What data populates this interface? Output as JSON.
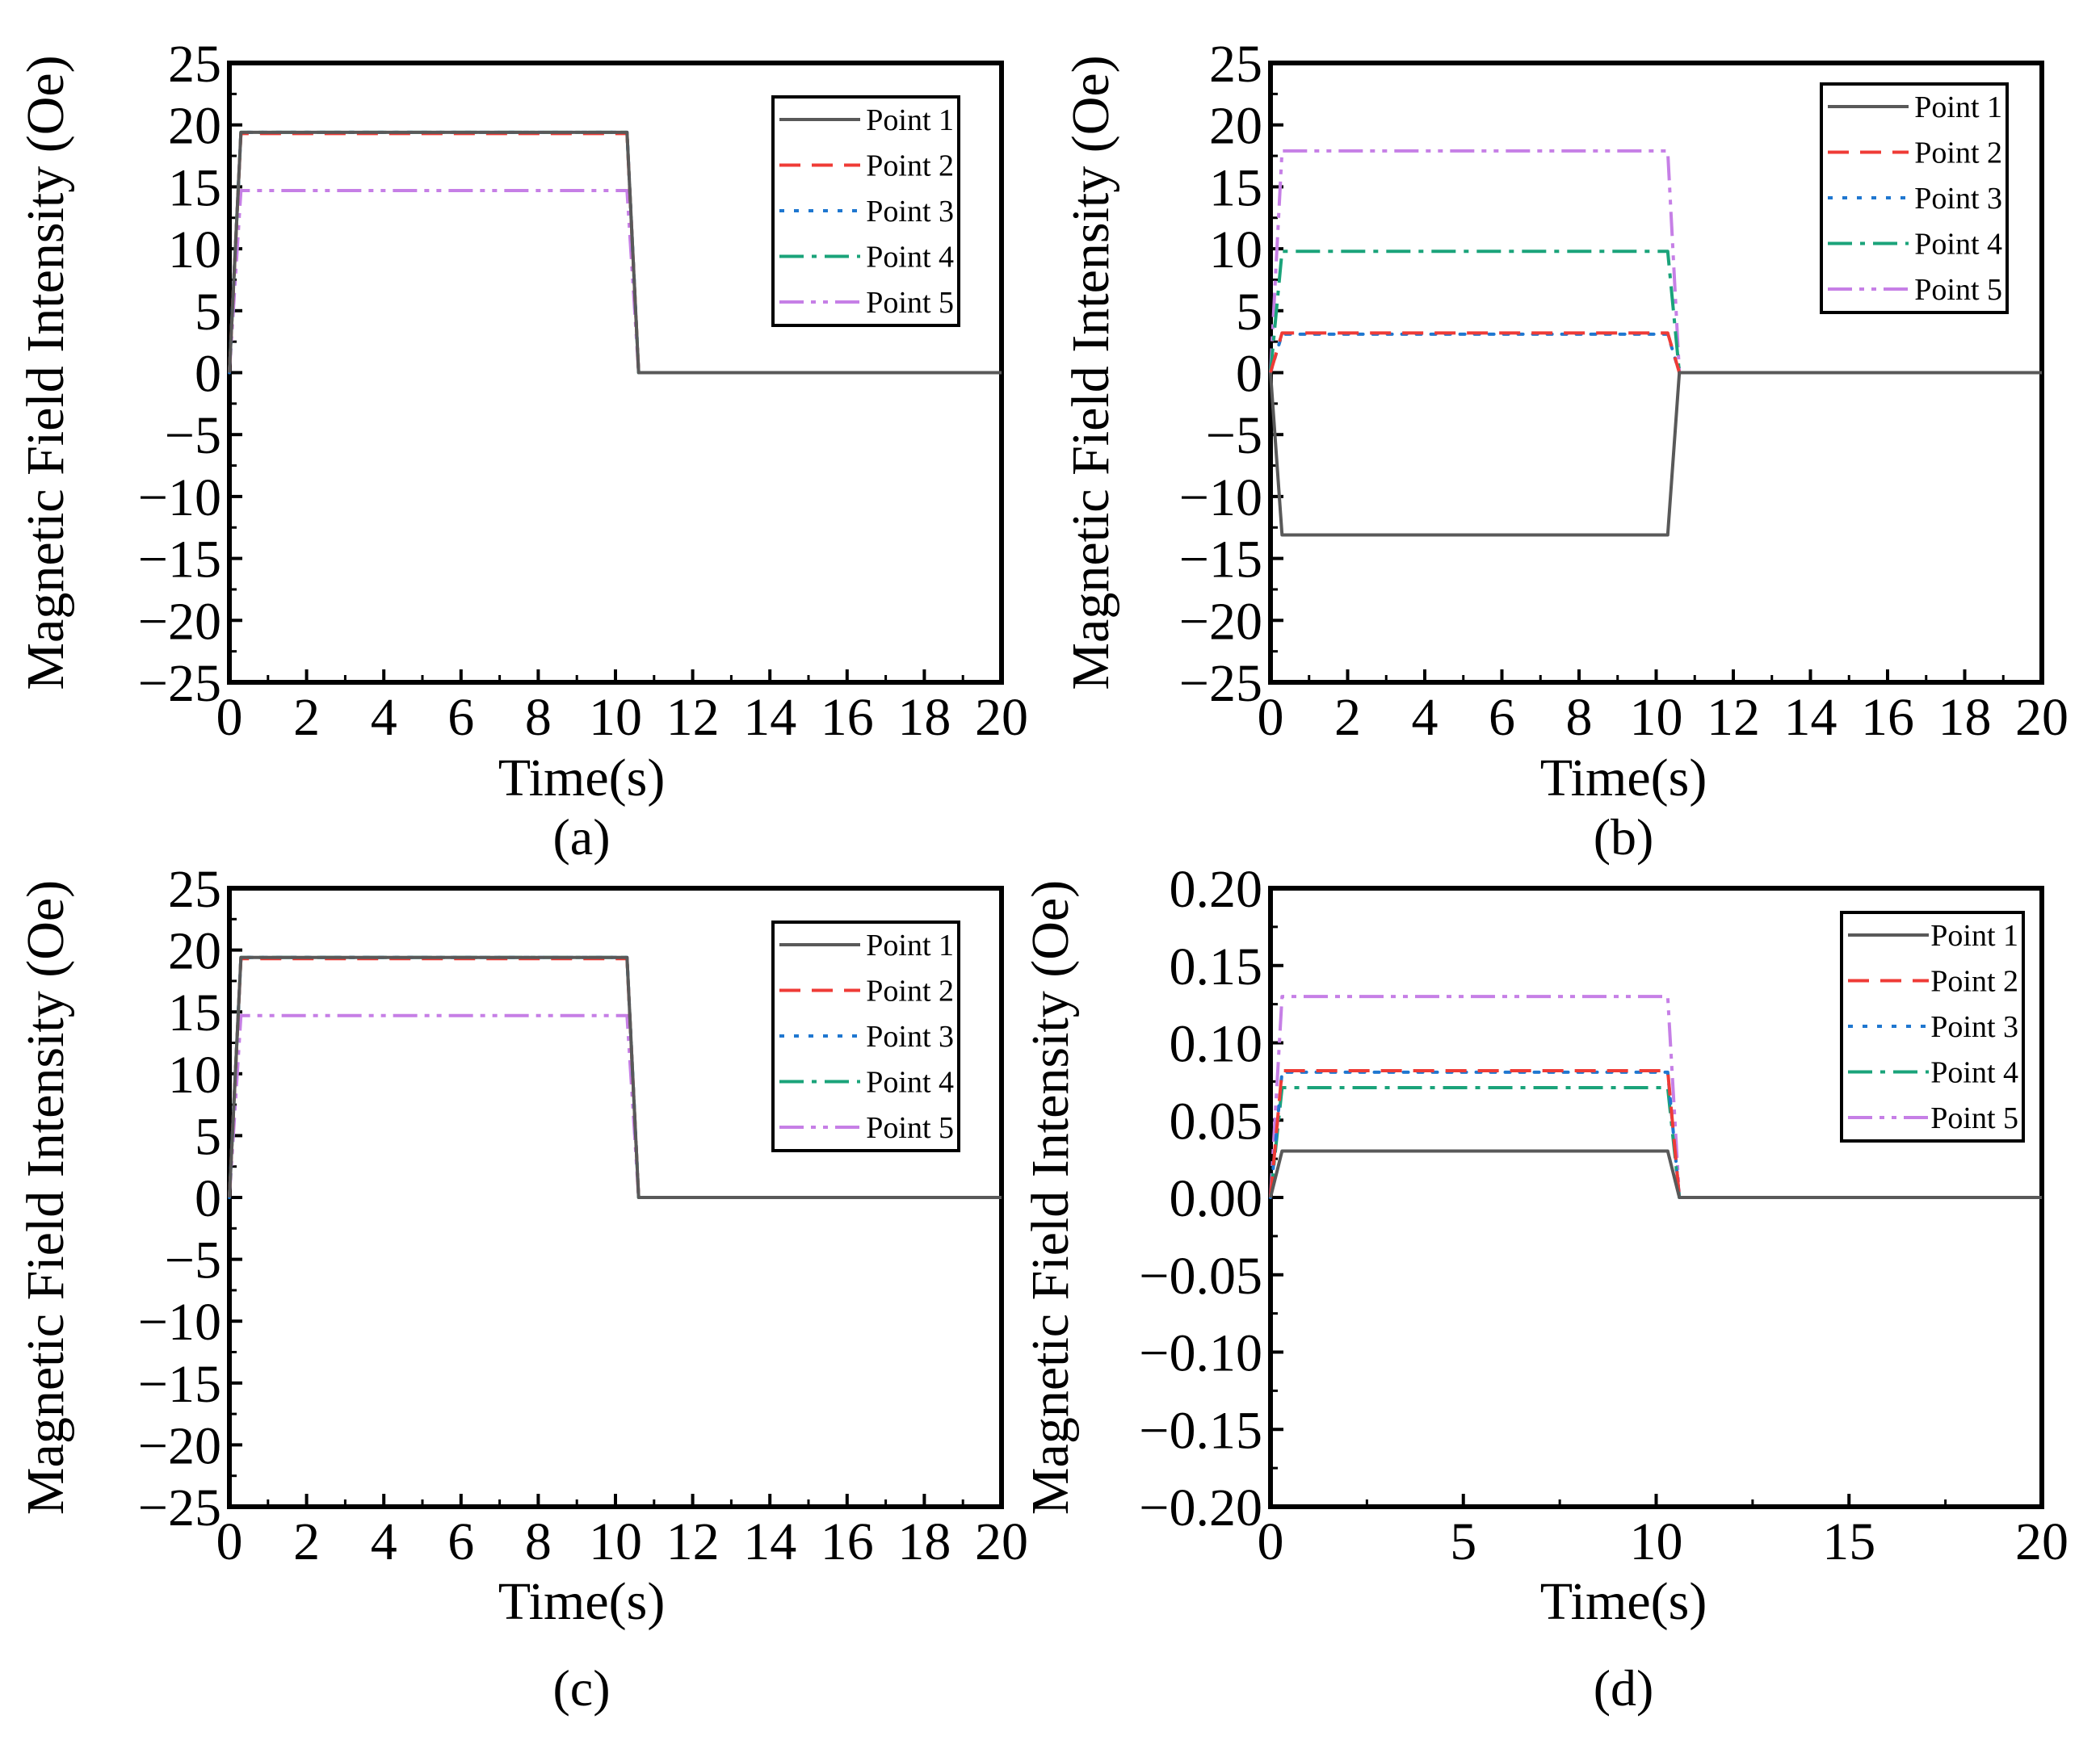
{
  "colors": {
    "point1": "#595959",
    "point2": "#ef3b36",
    "point3": "#1f77d0",
    "point4": "#1aa37a",
    "point5": "#c67fe6",
    "axis": "#000000"
  },
  "chart_data": [
    {
      "id": "a",
      "type": "line",
      "caption": "(a)",
      "xlabel": "Time(s)",
      "ylabel": "Magnetic Field Intensity (Oe)",
      "xlim": [
        0,
        20
      ],
      "ylim": [
        -25,
        25
      ],
      "xticks": [
        "0",
        "2",
        "4",
        "6",
        "8",
        "10",
        "12",
        "14",
        "16",
        "18",
        "20"
      ],
      "yticks": [
        "−25",
        "−20",
        "−15",
        "−10",
        "−5",
        "0",
        "5",
        "10",
        "15",
        "20",
        "25"
      ],
      "legend": [
        "Point 1",
        "Point 2",
        "Point 3",
        "Point 4",
        "Point 5"
      ],
      "legend_position": "top-right",
      "x": [
        0,
        0.3,
        10.3,
        10.6,
        20
      ],
      "series": [
        {
          "name": "Point 1",
          "values": [
            0,
            19.4,
            19.4,
            0,
            0
          ]
        },
        {
          "name": "Point 2",
          "values": [
            0,
            19.3,
            19.3,
            0,
            0
          ]
        },
        {
          "name": "Point 3",
          "values": [
            0,
            19.4,
            19.4,
            0,
            0
          ]
        },
        {
          "name": "Point 4",
          "values": [
            0,
            19.4,
            19.4,
            0,
            0
          ]
        },
        {
          "name": "Point 5",
          "values": [
            0,
            14.7,
            14.7,
            0,
            0
          ]
        }
      ]
    },
    {
      "id": "b",
      "type": "line",
      "caption": "(b)",
      "xlabel": "Time(s)",
      "ylabel": "Magnetic Field Intensity (Oe)",
      "xlim": [
        0,
        20
      ],
      "ylim": [
        -25,
        25
      ],
      "xticks": [
        "0",
        "2",
        "4",
        "6",
        "8",
        "10",
        "12",
        "14",
        "16",
        "18",
        "20"
      ],
      "yticks": [
        "−25",
        "−20",
        "−15",
        "−10",
        "−5",
        "0",
        "5",
        "10",
        "15",
        "20",
        "25"
      ],
      "legend": [
        "Point 1",
        "Point 2",
        "Point 3",
        "Point 4",
        "Point 5"
      ],
      "legend_position": "top-right",
      "x": [
        0,
        0.3,
        10.3,
        10.6,
        20
      ],
      "series": [
        {
          "name": "Point 1",
          "values": [
            0,
            -13.1,
            -13.1,
            0,
            0
          ]
        },
        {
          "name": "Point 2",
          "values": [
            0,
            3.2,
            3.2,
            0,
            0
          ]
        },
        {
          "name": "Point 3",
          "values": [
            0,
            3.1,
            3.1,
            0,
            0
          ]
        },
        {
          "name": "Point 4",
          "values": [
            0,
            9.8,
            9.8,
            0,
            0
          ]
        },
        {
          "name": "Point 5",
          "values": [
            0,
            17.9,
            17.9,
            0,
            0
          ]
        }
      ]
    },
    {
      "id": "c",
      "type": "line",
      "caption": "(c)",
      "xlabel": "Time(s)",
      "ylabel": "Magnetic Field Intensity (Oe)",
      "xlim": [
        0,
        20
      ],
      "ylim": [
        -25,
        25
      ],
      "xticks": [
        "0",
        "2",
        "4",
        "6",
        "8",
        "10",
        "12",
        "14",
        "16",
        "18",
        "20"
      ],
      "yticks": [
        "−25",
        "−20",
        "−15",
        "−10",
        "−5",
        "0",
        "5",
        "10",
        "15",
        "20",
        "25"
      ],
      "legend": [
        "Point 1",
        "Point 2",
        "Point 3",
        "Point 4",
        "Point 5"
      ],
      "legend_position": "top-right",
      "x": [
        0,
        0.3,
        10.3,
        10.6,
        20
      ],
      "series": [
        {
          "name": "Point 1",
          "values": [
            0,
            19.4,
            19.4,
            0,
            0
          ]
        },
        {
          "name": "Point 2",
          "values": [
            0,
            19.3,
            19.3,
            0,
            0
          ]
        },
        {
          "name": "Point 3",
          "values": [
            0,
            19.4,
            19.4,
            0,
            0
          ]
        },
        {
          "name": "Point 4",
          "values": [
            0,
            19.4,
            19.4,
            0,
            0
          ]
        },
        {
          "name": "Point 5",
          "values": [
            0,
            14.7,
            14.7,
            0,
            0
          ]
        }
      ]
    },
    {
      "id": "d",
      "type": "line",
      "caption": "(d)",
      "xlabel": "Time(s)",
      "ylabel": "Magnetic Field Intensity (Oe)",
      "xlim": [
        0,
        20
      ],
      "ylim": [
        -0.2,
        0.2
      ],
      "xticks": [
        "0",
        "5",
        "10",
        "15",
        "20"
      ],
      "yticks": [
        "−0.20",
        "−0.15",
        "−0.10",
        "−0.05",
        "0.00",
        "0.05",
        "0.10",
        "0.15",
        "0.20"
      ],
      "legend": [
        "Point 1",
        "Point 2",
        "Point 3",
        "Point 4",
        "Point 5"
      ],
      "legend_position": "top-right",
      "x": [
        0,
        0.3,
        10.3,
        10.6,
        20
      ],
      "series": [
        {
          "name": "Point 1",
          "values": [
            0,
            0.03,
            0.03,
            0,
            0
          ]
        },
        {
          "name": "Point 2",
          "values": [
            0,
            0.082,
            0.082,
            0,
            0
          ]
        },
        {
          "name": "Point 3",
          "values": [
            0,
            0.081,
            0.081,
            0,
            0
          ]
        },
        {
          "name": "Point 4",
          "values": [
            0,
            0.071,
            0.071,
            0,
            0
          ]
        },
        {
          "name": "Point 5",
          "values": [
            0,
            0.13,
            0.13,
            0,
            0
          ]
        }
      ]
    }
  ]
}
